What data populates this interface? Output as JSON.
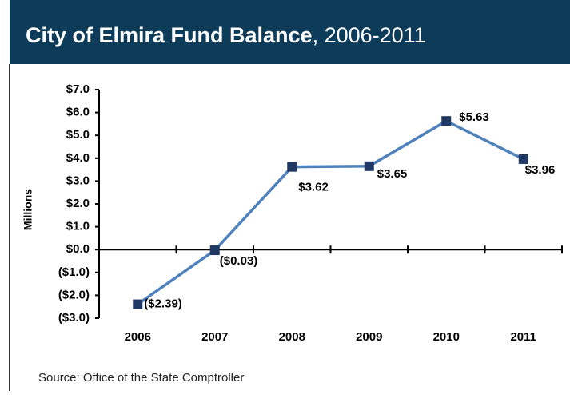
{
  "chart_data": {
    "type": "line",
    "title": "City of Elmira Fund Balance",
    "subtitle": ", 2006-2011",
    "y_label": "Millions",
    "source": "Source: Office of the State Comptroller",
    "categories": [
      "2006",
      "2007",
      "2008",
      "2009",
      "2010",
      "2011"
    ],
    "series": [
      {
        "name": "Fund Balance",
        "color": "#4f81bd",
        "marker_color": "#1f3864",
        "values": [
          -2.39,
          -0.03,
          3.62,
          3.65,
          5.63,
          3.96
        ],
        "value_labels": [
          "($2.39)",
          "($0.03)",
          "$3.62",
          "$3.65",
          "$5.63",
          "$3.96"
        ]
      }
    ],
    "negative_label_color": "#e31e24",
    "ylim": [
      -3,
      7
    ],
    "yticks": [
      {
        "value": -3,
        "label": "($3.0)"
      },
      {
        "value": -2,
        "label": "($2.0)"
      },
      {
        "value": -1,
        "label": "($1.0)"
      },
      {
        "value": 0,
        "label": "$0.0"
      },
      {
        "value": 1,
        "label": "$1.0"
      },
      {
        "value": 2,
        "label": "$2.0"
      },
      {
        "value": 3,
        "label": "$3.0"
      },
      {
        "value": 4,
        "label": "$4.0"
      },
      {
        "value": 5,
        "label": "$5.0"
      },
      {
        "value": 6,
        "label": "$6.0"
      },
      {
        "value": 7,
        "label": "$7.0"
      }
    ]
  }
}
